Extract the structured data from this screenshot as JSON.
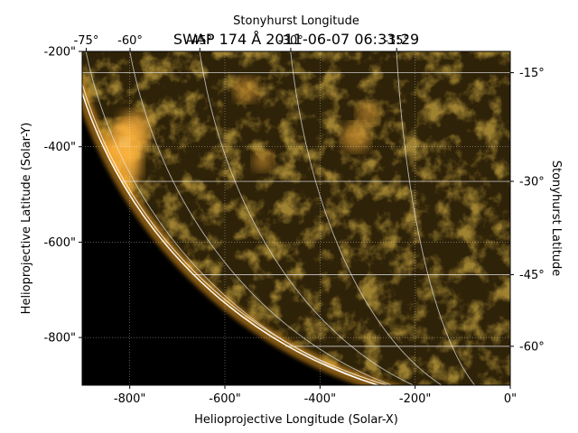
{
  "chart_data": {
    "type": "heatmap",
    "title": "SWAP 174 Å 2011-06-07 06:33:29",
    "xlabel": "Helioprojective Longitude (Solar-X)",
    "ylabel": "Helioprojective Latitude (Solar-Y)",
    "top_label": "Stonyhurst Longitude",
    "right_label": "Stonyhurst Latitude",
    "xlim": [
      -900,
      0
    ],
    "ylim": [
      -900,
      -200
    ],
    "x_unit": "arcsec",
    "y_unit": "arcsec",
    "solar_radius_arcsec": 945,
    "colormap": "solar-orange",
    "grid": "dotted",
    "x_ticks": [
      {
        "value": -800,
        "label": "-800\""
      },
      {
        "value": -600,
        "label": "-600\""
      },
      {
        "value": -400,
        "label": "-400\""
      },
      {
        "value": -200,
        "label": "-200\""
      },
      {
        "value": 0,
        "label": "0\""
      }
    ],
    "y_ticks": [
      {
        "value": -200,
        "label": "-200\""
      },
      {
        "value": -400,
        "label": "-400\""
      },
      {
        "value": -600,
        "label": "-600\""
      },
      {
        "value": -800,
        "label": "-800\""
      }
    ],
    "lon_lines": [
      {
        "deg": -75,
        "label": "-75°"
      },
      {
        "deg": -60,
        "label": "-60°"
      },
      {
        "deg": -45,
        "label": "-45°"
      },
      {
        "deg": -30,
        "label": "-30°"
      },
      {
        "deg": -15,
        "label": "-15°"
      }
    ],
    "lat_lines": [
      {
        "deg": -15,
        "label": "-15°"
      },
      {
        "deg": -30,
        "label": "-30°"
      },
      {
        "deg": -45,
        "label": "-45°"
      },
      {
        "deg": -60,
        "label": "-60°"
      }
    ],
    "bright_regions": [
      {
        "x": -830,
        "y": -440,
        "intensity": 1.0
      },
      {
        "x": -810,
        "y": -390,
        "intensity": 0.8
      },
      {
        "x": -790,
        "y": -360,
        "intensity": 0.6
      },
      {
        "x": -325,
        "y": -380,
        "intensity": 0.45
      },
      {
        "x": -555,
        "y": -280,
        "intensity": 0.35
      },
      {
        "x": -300,
        "y": -330,
        "intensity": 0.3
      },
      {
        "x": -520,
        "y": -430,
        "intensity": 0.25
      }
    ]
  }
}
